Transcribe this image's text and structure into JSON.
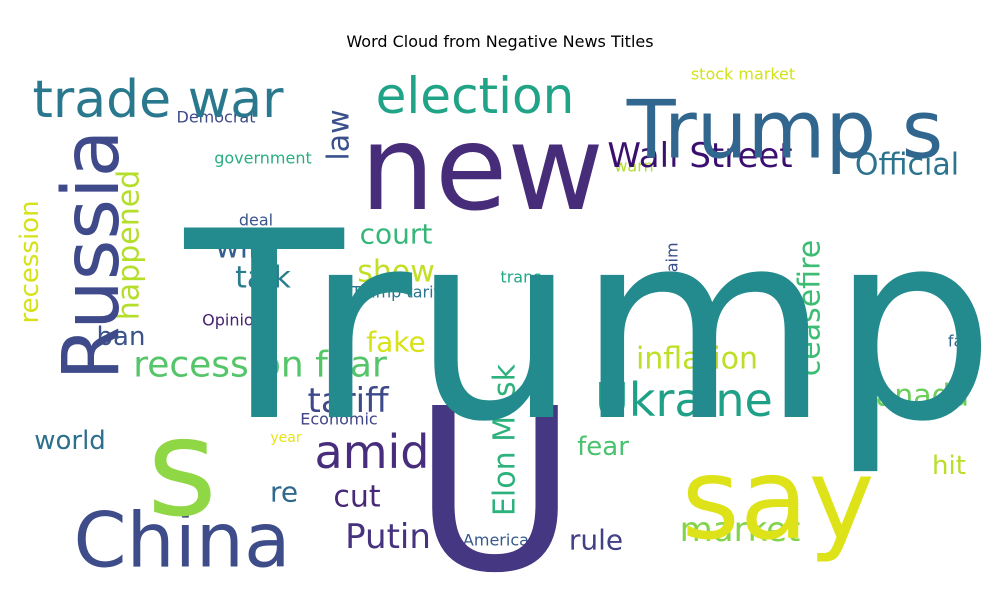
{
  "chart_data": {
    "type": "wordcloud",
    "title": "Word Cloud from Negative News Titles",
    "words": [
      {
        "text": "Trump",
        "weight": 100,
        "color": "#238a8d",
        "orientation": "horizontal"
      },
      {
        "text": "U",
        "weight": 95,
        "color": "#453781",
        "orientation": "horizontal"
      },
      {
        "text": "new",
        "weight": 70,
        "color": "#472c7a",
        "orientation": "horizontal"
      },
      {
        "text": "say",
        "weight": 68,
        "color": "#dde318",
        "orientation": "horizontal"
      },
      {
        "text": "s",
        "weight": 65,
        "color": "#8fd744",
        "orientation": "horizontal"
      },
      {
        "text": "Trump s",
        "weight": 50,
        "color": "#31678e",
        "orientation": "horizontal"
      },
      {
        "text": "Russia",
        "weight": 45,
        "color": "#3f4a8a",
        "orientation": "vertical"
      },
      {
        "text": "China",
        "weight": 42,
        "color": "#3e4c8a",
        "orientation": "horizontal"
      },
      {
        "text": "trade war",
        "weight": 32,
        "color": "#2a788e",
        "orientation": "horizontal"
      },
      {
        "text": "election",
        "weight": 30,
        "color": "#20a386",
        "orientation": "horizontal"
      },
      {
        "text": "Ukraine",
        "weight": 28,
        "color": "#1fa187",
        "orientation": "horizontal"
      },
      {
        "text": "amid",
        "weight": 27,
        "color": "#472d7b",
        "orientation": "horizontal"
      },
      {
        "text": "Wall Street",
        "weight": 22,
        "color": "#3b0f70",
        "orientation": "horizontal"
      },
      {
        "text": "recession fear",
        "weight": 22,
        "color": "#54c568",
        "orientation": "horizontal"
      },
      {
        "text": "tariff",
        "weight": 22,
        "color": "#3e4989",
        "orientation": "horizontal"
      },
      {
        "text": "Putin",
        "weight": 21,
        "color": "#46327e",
        "orientation": "horizontal"
      },
      {
        "text": "market",
        "weight": 21,
        "color": "#84d44b",
        "orientation": "horizontal"
      },
      {
        "text": "Official",
        "weight": 19,
        "color": "#2c738e",
        "orientation": "horizontal"
      },
      {
        "text": "Elon Musk",
        "weight": 19,
        "color": "#2db27d",
        "orientation": "vertical"
      },
      {
        "text": "happened",
        "weight": 18,
        "color": "#b5de2b",
        "orientation": "vertical"
      },
      {
        "text": "ceasefire",
        "weight": 18,
        "color": "#3dbc74",
        "orientation": "vertical"
      },
      {
        "text": "law",
        "weight": 18,
        "color": "#3b518b",
        "orientation": "vertical"
      },
      {
        "text": "inflation",
        "weight": 18,
        "color": "#bddf26",
        "orientation": "horizontal"
      },
      {
        "text": "Canada",
        "weight": 18,
        "color": "#6ccd5a",
        "orientation": "horizontal"
      },
      {
        "text": "court",
        "weight": 17,
        "color": "#35b779",
        "orientation": "horizontal"
      },
      {
        "text": "show",
        "weight": 17,
        "color": "#c2df23",
        "orientation": "horizontal"
      },
      {
        "text": "talk",
        "weight": 17,
        "color": "#287c8e",
        "orientation": "horizontal"
      },
      {
        "text": "will",
        "weight": 17,
        "color": "#355f8d",
        "orientation": "horizontal"
      },
      {
        "text": "cut",
        "weight": 17,
        "color": "#482878",
        "orientation": "horizontal"
      },
      {
        "text": "rule",
        "weight": 17,
        "color": "#424086",
        "orientation": "horizontal"
      },
      {
        "text": "recession",
        "weight": 16,
        "color": "#d5e21a",
        "orientation": "vertical"
      },
      {
        "text": "ban",
        "weight": 16,
        "color": "#3b528b",
        "orientation": "horizontal"
      },
      {
        "text": "fake",
        "weight": 16,
        "color": "#d8e219",
        "orientation": "horizontal"
      },
      {
        "text": "re",
        "weight": 16,
        "color": "#31688e",
        "orientation": "horizontal"
      },
      {
        "text": "world",
        "weight": 16,
        "color": "#2d708e",
        "orientation": "horizontal"
      },
      {
        "text": "fear",
        "weight": 16,
        "color": "#4ac16d",
        "orientation": "horizontal"
      },
      {
        "text": "hit",
        "weight": 16,
        "color": "#b8de29",
        "orientation": "horizontal"
      },
      {
        "text": "stock market",
        "weight": 11,
        "color": "#d2e21b",
        "orientation": "horizontal"
      },
      {
        "text": "Democrat",
        "weight": 11,
        "color": "#3e4a89",
        "orientation": "horizontal"
      },
      {
        "text": "government",
        "weight": 11,
        "color": "#29af7f",
        "orientation": "horizontal"
      },
      {
        "text": "warn",
        "weight": 10,
        "color": "#b2dd2d",
        "orientation": "horizontal"
      },
      {
        "text": "deal",
        "weight": 10,
        "color": "#3a548c",
        "orientation": "horizontal"
      },
      {
        "text": "claim",
        "weight": 10,
        "color": "#3c4f8a",
        "orientation": "vertical"
      },
      {
        "text": "trans",
        "weight": 10,
        "color": "#22a785",
        "orientation": "horizontal"
      },
      {
        "text": "Trump tariff",
        "weight": 11,
        "color": "#2a768e",
        "orientation": "horizontal"
      },
      {
        "text": "Opinion",
        "weight": 11,
        "color": "#482173",
        "orientation": "horizontal"
      },
      {
        "text": "fall",
        "weight": 10,
        "color": "#32648e",
        "orientation": "horizontal"
      },
      {
        "text": "Economic",
        "weight": 10,
        "color": "#404588",
        "orientation": "horizontal"
      },
      {
        "text": "year",
        "weight": 10,
        "color": "#e7e419",
        "orientation": "horizontal"
      },
      {
        "text": "American",
        "weight": 11,
        "color": "#38598c",
        "orientation": "horizontal"
      }
    ]
  }
}
